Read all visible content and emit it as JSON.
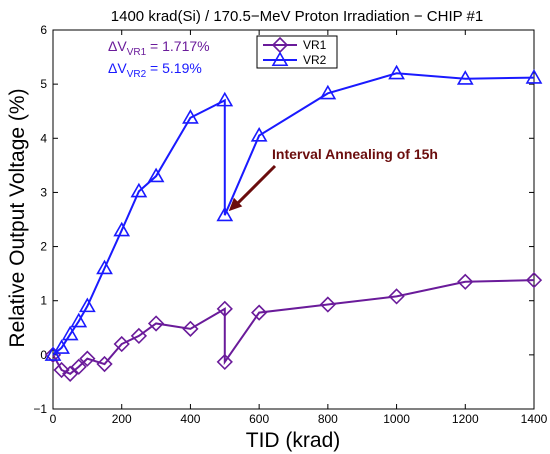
{
  "chart_data": {
    "type": "line",
    "title": "1400 krad(Si) / 170.5−MeV Proton Irradiation − CHIP #1",
    "xlabel": "TID (krad)",
    "ylabel": "Relative Output Voltage (%)",
    "xlim": [
      0,
      1400
    ],
    "ylim": [
      -1,
      6
    ],
    "xticks": [
      "0",
      "200",
      "400",
      "600",
      "800",
      "1000",
      "1200",
      "1400"
    ],
    "yticks": [
      "−1",
      "0",
      "1",
      "2",
      "3",
      "4",
      "5",
      "6"
    ],
    "grid": false,
    "legend_position": "top-center",
    "series": [
      {
        "name": "VR1",
        "color": "#6a1b9a",
        "marker": "diamond",
        "x": [
          0,
          25,
          50,
          75,
          100,
          150,
          200,
          250,
          300,
          400,
          500,
          500,
          600,
          800,
          1000,
          1200,
          1400
        ],
        "y": [
          0,
          -0.28,
          -0.35,
          -0.22,
          -0.07,
          -0.17,
          0.2,
          0.35,
          0.58,
          0.48,
          0.85,
          -0.13,
          0.78,
          0.93,
          1.08,
          1.35,
          1.38
        ]
      },
      {
        "name": "VR2",
        "color": "#1a1aff",
        "marker": "triangle",
        "x": [
          0,
          25,
          50,
          75,
          100,
          150,
          200,
          250,
          300,
          400,
          500,
          500,
          600,
          800,
          1000,
          1200,
          1400
        ],
        "y": [
          0,
          0.13,
          0.38,
          0.62,
          0.9,
          1.6,
          2.3,
          3.02,
          3.3,
          4.38,
          4.7,
          2.58,
          4.05,
          4.83,
          5.2,
          5.1,
          5.12
        ]
      }
    ],
    "delta_labels": [
      {
        "prefix": "ΔV",
        "sub": "VR1",
        "value": " = 1.717%",
        "color": "#6a1b9a"
      },
      {
        "prefix": "ΔV",
        "sub": "VR2",
        "value": " = 5.19%",
        "color": "#1a1aff"
      }
    ],
    "annotation": {
      "text": "Interval Annealing of 15h",
      "color": "#6b0d0d",
      "target_x": 500,
      "target_y": 2.58
    }
  }
}
